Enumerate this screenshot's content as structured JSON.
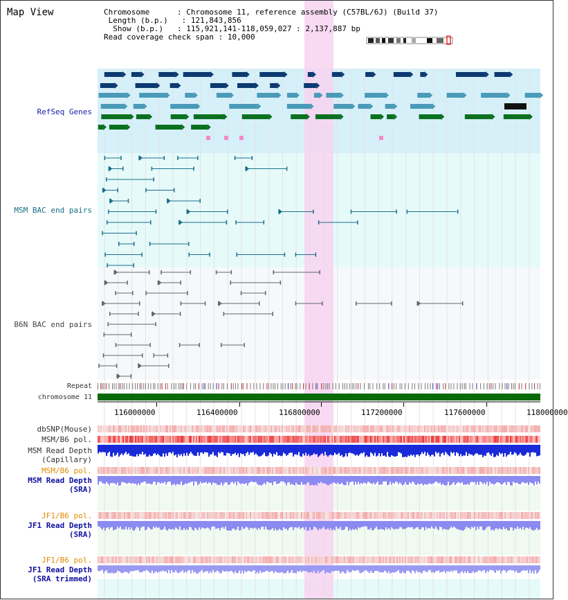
{
  "header": {
    "title": "Map View",
    "chromosome_key": "Chromosome",
    "chromosome_value": "Chromosome 11, reference assembly (C57BL/6J) (Build 37)",
    "length_key": "Length (b.p.)",
    "length_value": "121,843,856",
    "show_key": "Show (b.p.)",
    "show_value": "115,921,141-118,059,027 : 2,137,887 bp",
    "coverage_key": "Read coverage check span",
    "coverage_value": "10,000"
  },
  "tracks": {
    "refseq": "RefSeq Genes",
    "msm_bac": "MSM BAC end pairs",
    "b6n_bac": "B6N BAC end pairs",
    "repeat": "Repeat",
    "chromosome": "chromosome 11",
    "dbsnp": "dbSNP(Mouse)",
    "msm_b6_pol_1": "MSM/B6 pol.",
    "msm_depth_cap_1": "MSM Read Depth",
    "msm_depth_cap_2": "(Capillary)",
    "msm_b6_pol_2": "MSM/B6 pol.",
    "msm_depth_sra_1": "MSM Read Depth",
    "msm_depth_sra_2": "(SRA)",
    "jf1_b6_pol_1": "JF1/B6 pol.",
    "jf1_depth_sra_1": "JF1 Read Depth",
    "jf1_depth_sra_2": "(SRA)",
    "jf1_b6_pol_2": "JF1/B6 pol.",
    "jf1_depth_trim_1": "JF1 Read Depth",
    "jf1_depth_trim_2": "(SRA trimmed)"
  },
  "axis": {
    "ticks": [
      "116000000",
      "116400000",
      "116800000",
      "117200000",
      "117600000",
      "118000000"
    ]
  },
  "colors": {
    "highlight": "#f7d4f0",
    "refseq_bg": "#d6f0fa",
    "msm_bg": "#e6fafa",
    "b6n_bg": "#f6f8fb",
    "gene_navy": "#0c3a70",
    "gene_teal": "#4a9ab8",
    "gene_green": "#0a7020",
    "chrom_green": "#0a6a0a"
  }
}
